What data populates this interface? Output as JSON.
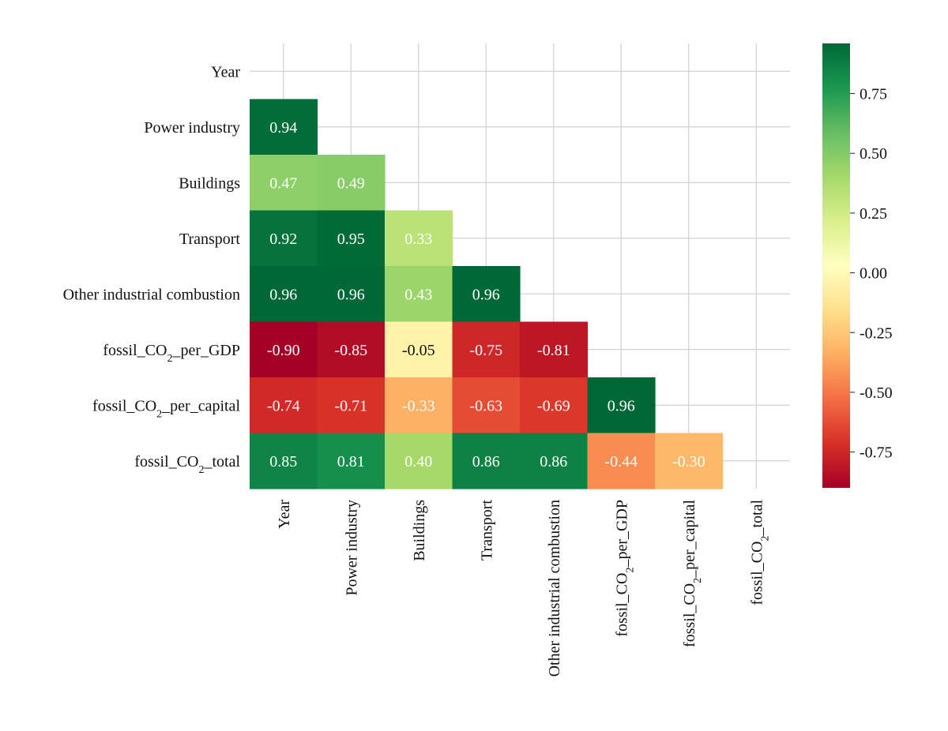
{
  "chart_data": {
    "type": "heatmap",
    "title": "",
    "variables": [
      {
        "base": "Year",
        "sub": "",
        "suffix": ""
      },
      {
        "base": "Power industry",
        "sub": "",
        "suffix": ""
      },
      {
        "base": "Buildings",
        "sub": "",
        "suffix": ""
      },
      {
        "base": "Transport",
        "sub": "",
        "suffix": ""
      },
      {
        "base": "Other industrial combustion",
        "sub": "",
        "suffix": ""
      },
      {
        "base": "fossil_CO",
        "sub": "2",
        "suffix": "_per_GDP"
      },
      {
        "base": "fossil_CO",
        "sub": "2",
        "suffix": "_per_capital"
      },
      {
        "base": "fossil_CO",
        "sub": "2",
        "suffix": "_total"
      }
    ],
    "matrix": [
      [],
      [
        0.94
      ],
      [
        0.47,
        0.49
      ],
      [
        0.92,
        0.95,
        0.33
      ],
      [
        0.96,
        0.96,
        0.43,
        0.96
      ],
      [
        -0.9,
        -0.85,
        -0.05,
        -0.75,
        -0.81
      ],
      [
        -0.74,
        -0.71,
        -0.33,
        -0.63,
        -0.69,
        0.96
      ],
      [
        0.85,
        0.81,
        0.4,
        0.86,
        0.86,
        -0.44,
        -0.3
      ]
    ],
    "vmin": -0.9,
    "vmax": 0.96,
    "colormap": "RdYlGn",
    "colorbar_ticks": [
      "0.75",
      "0.50",
      "0.25",
      "0.00",
      "-0.25",
      "-0.50",
      "-0.75"
    ],
    "colorbar_tick_values": [
      0.75,
      0.5,
      0.25,
      0.0,
      -0.25,
      -0.5,
      -0.75
    ],
    "grid": true,
    "mask": "upper-triangle"
  }
}
